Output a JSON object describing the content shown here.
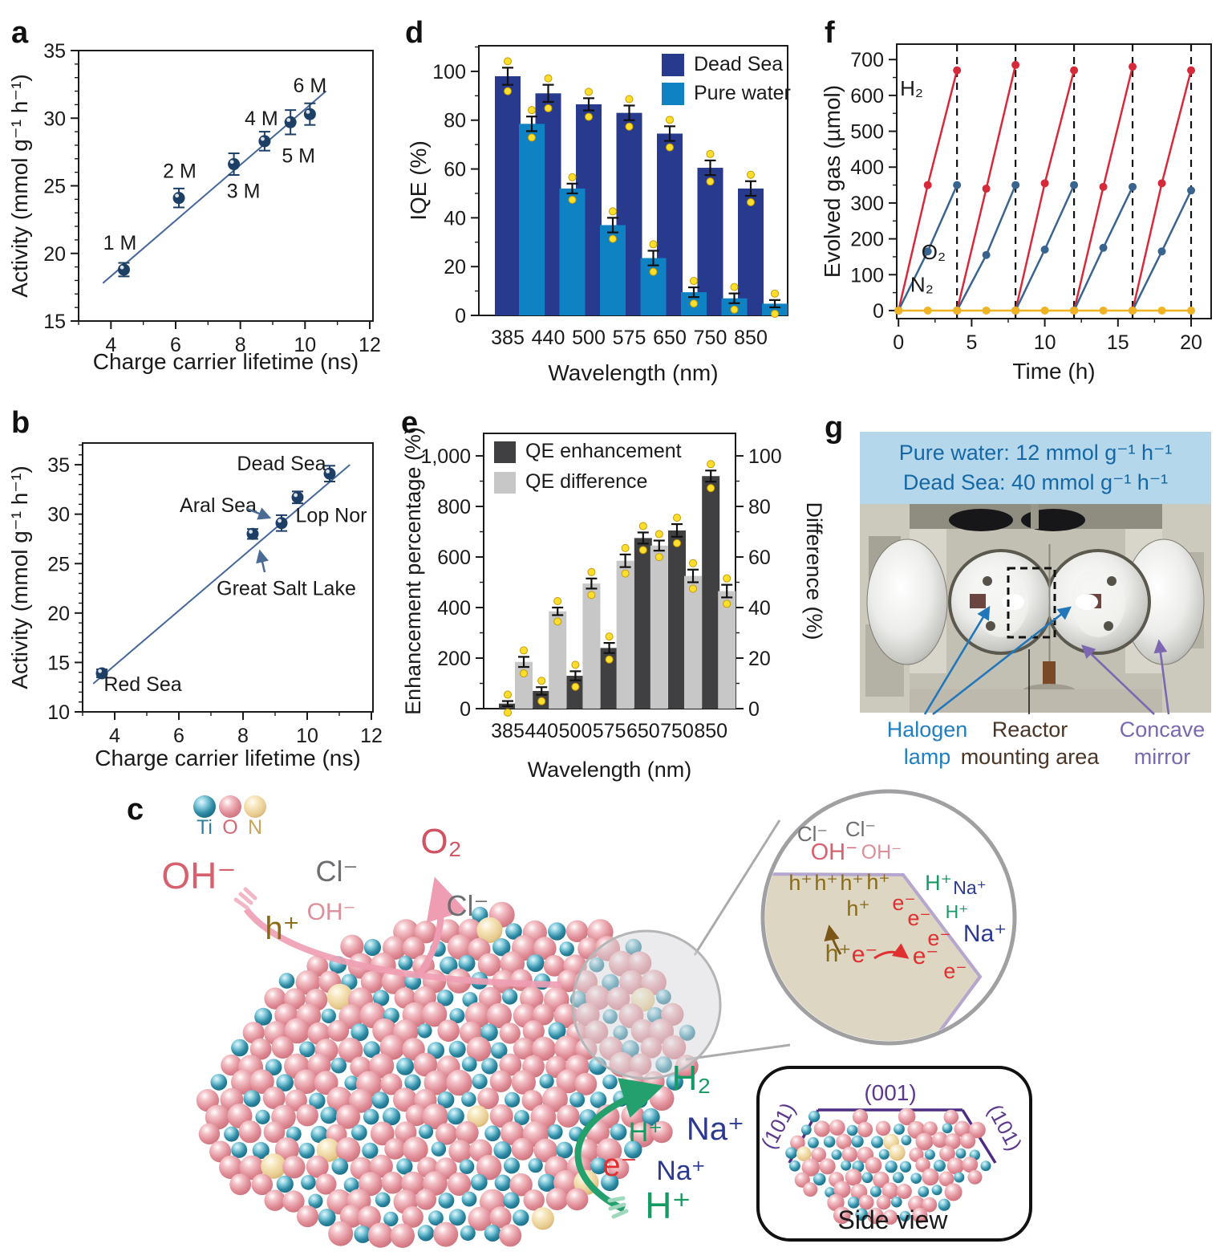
{
  "panel_letters": {
    "a": "a",
    "b": "b",
    "c": "c",
    "d": "d",
    "e": "e",
    "f": "f",
    "g": "g"
  },
  "chart_data": {
    "a": {
      "type": "scatter",
      "xlabel": "Charge carrier lifetime (ns)",
      "ylabel": "Activity (mmol g⁻¹ h⁻¹)",
      "xlim": [
        3,
        12.1
      ],
      "ylim": [
        15,
        35
      ],
      "xticks": [
        4,
        6,
        8,
        10,
        12
      ],
      "yticks": [
        15,
        20,
        25,
        30,
        35
      ],
      "color": "#1d3f66",
      "points": [
        {
          "x": 4.4,
          "y": 18.8,
          "err": 0.5,
          "label": "1 M"
        },
        {
          "x": 6.1,
          "y": 24.1,
          "err": 0.7,
          "label": "2 M"
        },
        {
          "x": 7.8,
          "y": 26.6,
          "err": 0.8,
          "label": "3 M"
        },
        {
          "x": 8.75,
          "y": 28.3,
          "err": 0.7,
          "label": "4 M"
        },
        {
          "x": 9.55,
          "y": 29.7,
          "err": 0.9,
          "label": "5 M"
        },
        {
          "x": 10.15,
          "y": 30.3,
          "err": 0.8,
          "label": "6 M"
        }
      ],
      "fit": {
        "x1": 3.75,
        "y1": 17.8,
        "x2": 10.65,
        "y2": 32.0
      }
    },
    "b": {
      "type": "scatter",
      "xlabel": "Charge carrier lifetime (ns)",
      "ylabel": "Activity (mmol g⁻¹ h⁻¹)",
      "xlim": [
        3,
        12.05
      ],
      "ylim": [
        10,
        37.2
      ],
      "xticks": [
        4,
        6,
        8,
        10,
        12
      ],
      "yticks": [
        10,
        15,
        20,
        25,
        30,
        35
      ],
      "color": "#1d3f66",
      "points": [
        {
          "x": 3.6,
          "y": 13.9,
          "err": 0.4,
          "label": "Red Sea"
        },
        {
          "x": 8.3,
          "y": 28.0,
          "err": 0.5,
          "label": "Great Salt Lake"
        },
        {
          "x": 9.2,
          "y": 29.1,
          "err": 0.8,
          "label": "Aral Sea"
        },
        {
          "x": 9.7,
          "y": 31.7,
          "err": 0.6,
          "label": "Lop Nor"
        },
        {
          "x": 10.7,
          "y": 34.1,
          "err": 0.8,
          "label": "Dead Sea"
        }
      ],
      "fit": {
        "x1": 3.33,
        "y1": 12.85,
        "x2": 11.33,
        "y2": 35.0
      }
    },
    "d": {
      "type": "bar",
      "xlabel": "Wavelength (nm)",
      "ylabel": "IQE (%)",
      "categories": [
        "385",
        "440",
        "500",
        "575",
        "650",
        "750",
        "850"
      ],
      "ylim": [
        0,
        110.5
      ],
      "yticks": [
        0,
        20,
        40,
        60,
        80,
        100
      ],
      "marker_color": "#ffdf2b",
      "series": [
        {
          "name": "Dead Sea",
          "color": "#283a8e",
          "axis": "left",
          "values": [
            98,
            91,
            86.5,
            83,
            74.5,
            60.5,
            52
          ],
          "err": [
            3.5,
            3.5,
            2.5,
            3,
            3,
            3,
            3
          ]
        },
        {
          "name": "Pure water",
          "color": "#0f82c4",
          "axis": "left",
          "values": [
            78.5,
            52,
            37,
            23.5,
            9.5,
            7,
            4.8
          ],
          "err": [
            3,
            2,
            3,
            3,
            2,
            2,
            1.5
          ]
        }
      ]
    },
    "e": {
      "type": "bar-dual",
      "xlabel": "Wavelength (nm)",
      "ylabel_left": "Enhancement percentage (%)",
      "ylabel_right": "Difference (%)",
      "categories": [
        "385",
        "440",
        "500",
        "575",
        "650",
        "750",
        "850"
      ],
      "ylim_left": [
        0,
        1089
      ],
      "ytick_vals_left": [
        0,
        200,
        400,
        600,
        800,
        1000
      ],
      "yticks_left": [
        "0",
        "200",
        "400",
        "600",
        "800",
        "1,000"
      ],
      "yticks_right": [
        0,
        20,
        40,
        60,
        80,
        100
      ],
      "marker_color": "#ffdf2b",
      "series": [
        {
          "name": "QE enhancement",
          "color": "#404042",
          "axis": "left",
          "values": [
            20,
            70,
            130,
            240,
            675,
            705,
            920
          ],
          "err": [
            10,
            15,
            18,
            20,
            22,
            25,
            22
          ]
        },
        {
          "name": "QE difference",
          "color": "#c7c7c7",
          "axis": "right",
          "values": [
            18.5,
            38.5,
            49.5,
            58.5,
            64.5,
            52.5,
            46.5
          ],
          "err": [
            2,
            1.5,
            2,
            2.5,
            2,
            2.5,
            2.5
          ]
        }
      ]
    },
    "f": {
      "type": "line",
      "xlabel": "Time (h)",
      "ylabel": "Evolved gas (µmol)",
      "xlim": [
        -0.12,
        21.37
      ],
      "ylim": [
        -22.5,
        743
      ],
      "xticks": [
        0,
        5,
        10,
        15,
        20
      ],
      "yticks": [
        0,
        100,
        200,
        300,
        400,
        500,
        600,
        700
      ],
      "dashed_x": [
        4,
        8,
        12,
        16,
        20
      ],
      "series": [
        {
          "name": "H₂",
          "color": "#d6293a",
          "cycles": [
            [
              [
                0,
                0
              ],
              [
                2,
                350
              ],
              [
                4,
                670
              ]
            ],
            [
              [
                4,
                0
              ],
              [
                6,
                340
              ],
              [
                8,
                685
              ]
            ],
            [
              [
                8,
                0
              ],
              [
                10,
                355
              ],
              [
                12,
                670
              ]
            ],
            [
              [
                12,
                0
              ],
              [
                14,
                345
              ],
              [
                16,
                680
              ]
            ],
            [
              [
                16,
                0
              ],
              [
                18,
                355
              ],
              [
                20,
                670
              ]
            ]
          ]
        },
        {
          "name": "O₂",
          "color": "#39648f",
          "cycles": [
            [
              [
                0,
                0
              ],
              [
                2,
                165
              ],
              [
                4,
                350
              ]
            ],
            [
              [
                4,
                0
              ],
              [
                6,
                155
              ],
              [
                8,
                350
              ]
            ],
            [
              [
                8,
                0
              ],
              [
                10,
                170
              ],
              [
                12,
                350
              ]
            ],
            [
              [
                12,
                0
              ],
              [
                14,
                175
              ],
              [
                16,
                345
              ]
            ],
            [
              [
                16,
                0
              ],
              [
                18,
                165
              ],
              [
                20,
                335
              ]
            ]
          ]
        },
        {
          "name": "N₂",
          "color": "#f0b323",
          "cycles": [
            [
              [
                0,
                0
              ],
              [
                2,
                0
              ],
              [
                4,
                0
              ],
              [
                6,
                0
              ],
              [
                8,
                0
              ],
              [
                10,
                0
              ],
              [
                12,
                0
              ],
              [
                14,
                0
              ],
              [
                16,
                0
              ],
              [
                18,
                0
              ],
              [
                20,
                0
              ]
            ]
          ]
        }
      ],
      "series_labels": [
        {
          "text": "H₂",
          "x": 0.9,
          "y": 600
        },
        {
          "text": "O₂",
          "x": 2.4,
          "y": 143
        },
        {
          "text": "N₂",
          "x": 1.6,
          "y": 52
        }
      ]
    }
  },
  "panel_c": {
    "legend": [
      {
        "label": "Ti",
        "color": "#2f7f9d"
      },
      {
        "label": "O",
        "color": "#d66a74"
      },
      {
        "label": "N",
        "color": "#caa45a"
      }
    ],
    "main_labels": [
      {
        "text": "OH⁻",
        "color": "#d6606e"
      },
      {
        "text": "Cl⁻",
        "color": "#6d6e71"
      },
      {
        "text": "O₂",
        "color": "#cf5360"
      },
      {
        "text": "OH⁻",
        "color": "#dd8f99"
      },
      {
        "text": "h⁺",
        "color": "#8a6a14"
      },
      {
        "text": "Cl⁻",
        "color": "#6d6e71"
      },
      {
        "text": "H₂",
        "color": "#169a63"
      },
      {
        "text": "H⁺",
        "color": "#169a63"
      },
      {
        "text": "Na⁺",
        "color": "#2b3990"
      },
      {
        "text": "e⁻",
        "color": "#e03030"
      },
      {
        "text": "Na⁺",
        "color": "#2b3990"
      },
      {
        "text": "H⁺",
        "color": "#169a63"
      }
    ],
    "inset_labels": [
      {
        "text": "Cl⁻",
        "color": "#6d6e71"
      },
      {
        "text": "Cl⁻",
        "color": "#6d6e71"
      },
      {
        "text": "OH⁻",
        "color": "#d6606e"
      },
      {
        "text": "OH⁻",
        "color": "#dd8f99"
      },
      {
        "text": "h⁺",
        "color": "#8a6a14"
      },
      {
        "text": "h⁺",
        "color": "#8a6a14"
      },
      {
        "text": "h⁺",
        "color": "#8a6a14"
      },
      {
        "text": "h⁺",
        "color": "#8a6a14"
      },
      {
        "text": "h⁺",
        "color": "#8a6a14"
      },
      {
        "text": "e⁻",
        "color": "#e03030"
      },
      {
        "text": "e⁻",
        "color": "#e03030"
      },
      {
        "text": "H⁺",
        "color": "#169a63"
      },
      {
        "text": "Na⁺",
        "color": "#2b3990"
      },
      {
        "text": "H⁺",
        "color": "#169a63"
      },
      {
        "text": "e⁻",
        "color": "#e03030"
      },
      {
        "text": "Na⁺",
        "color": "#2b3990"
      },
      {
        "text": "h⁺",
        "color": "#8a6a14"
      },
      {
        "text": "e⁻",
        "color": "#e03030"
      },
      {
        "text": "e⁻",
        "color": "#e03030"
      },
      {
        "text": "e⁻",
        "color": "#e03030"
      }
    ],
    "side_view": {
      "top": "(001)",
      "left": "(101)",
      "right": "(101)",
      "caption": "Side view"
    }
  },
  "panel_g": {
    "header_line1": "Pure water: 12 mmol g⁻¹ h⁻¹",
    "header_line2": "Dead Sea: 40 mmol g⁻¹ h⁻¹",
    "labels": [
      {
        "id": "halogen-lamp",
        "text": "Halogen lamp",
        "color": "#1f7fc0"
      },
      {
        "id": "reactor-mounting-area",
        "text": "Reactor mounting area",
        "color": "#4a3526"
      },
      {
        "id": "concave-mirror",
        "text": "Concave mirror",
        "color": "#7b68b0"
      }
    ]
  }
}
